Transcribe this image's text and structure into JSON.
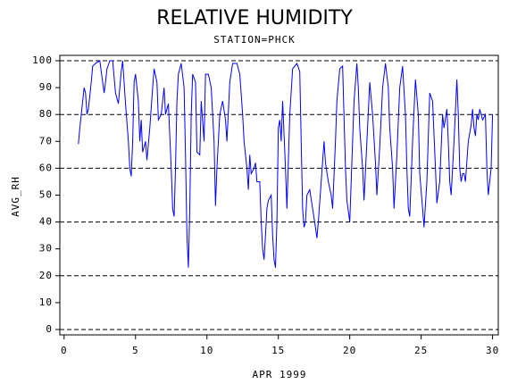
{
  "chart_data": {
    "type": "line",
    "title": "RELATIVE HUMIDITY",
    "subtitle": "STATION=PHCK",
    "xlabel": "APR 1999",
    "ylabel": "AVG_RH",
    "xlim": [
      -0.3,
      30.4
    ],
    "ylim": [
      -2,
      102
    ],
    "xticks": [
      0,
      5,
      10,
      15,
      20,
      25,
      30
    ],
    "yticks": [
      0,
      10,
      20,
      30,
      40,
      50,
      60,
      70,
      80,
      90,
      100
    ],
    "grid_values": [
      0,
      20,
      40,
      60,
      80,
      100
    ],
    "series": [
      {
        "color": "#0000ff",
        "x": [
          1.0,
          1.1,
          1.3,
          1.4,
          1.5,
          1.6,
          1.7,
          1.9,
          2.0,
          2.2,
          2.5,
          2.6,
          2.8,
          2.9,
          3.0,
          3.2,
          3.4,
          3.6,
          3.8,
          4.0,
          4.1,
          4.3,
          4.5,
          4.6,
          4.7,
          4.8,
          4.9,
          5.0,
          5.2,
          5.3,
          5.4,
          5.5,
          5.7,
          5.8,
          6.0,
          6.2,
          6.3,
          6.5,
          6.6,
          6.8,
          7.0,
          7.1,
          7.3,
          7.5,
          7.6,
          7.7,
          7.8,
          7.9,
          8.0,
          8.2,
          8.4,
          8.5,
          8.6,
          8.7,
          8.8,
          8.9,
          9.0,
          9.2,
          9.3,
          9.5,
          9.6,
          9.8,
          9.9,
          10.1,
          10.3,
          10.5,
          10.6,
          10.7,
          10.9,
          11.1,
          11.3,
          11.4,
          11.6,
          11.8,
          12.1,
          12.3,
          12.5,
          12.6,
          12.8,
          12.9,
          13.0,
          13.1,
          13.3,
          13.4,
          13.5,
          13.7,
          13.8,
          13.9,
          14.0,
          14.1,
          14.2,
          14.3,
          14.5,
          14.6,
          14.7,
          14.8,
          14.9,
          15.0,
          15.1,
          15.2,
          15.3,
          15.5,
          15.6,
          15.8,
          16.0,
          16.3,
          16.5,
          16.6,
          16.7,
          16.8,
          16.9,
          17.0,
          17.2,
          17.4,
          17.6,
          17.7,
          17.8,
          18.0,
          18.2,
          18.3,
          18.5,
          18.7,
          18.8,
          19.0,
          19.1,
          19.3,
          19.5,
          19.7,
          19.8,
          20.0,
          20.1,
          20.3,
          20.5,
          20.6,
          20.7,
          20.9,
          21.0,
          21.2,
          21.4,
          21.6,
          21.8,
          21.9,
          22.1,
          22.3,
          22.5,
          22.7,
          22.8,
          23.0,
          23.1,
          23.3,
          23.5,
          23.7,
          23.9,
          24.0,
          24.1,
          24.2,
          24.4,
          24.6,
          24.8,
          24.9,
          25.1,
          25.2,
          25.4,
          25.6,
          25.8,
          26.0,
          26.1,
          26.3,
          26.5,
          26.6,
          26.8,
          26.9,
          27.0,
          27.1,
          27.3,
          27.5,
          27.6,
          27.7,
          27.8,
          27.9,
          28.0,
          28.1,
          28.3,
          28.5,
          28.6,
          28.7,
          28.8,
          28.9,
          29.0,
          29.1,
          29.3,
          29.5,
          29.6,
          29.7,
          29.8,
          29.9,
          30.0
        ],
        "values": [
          69,
          75,
          85,
          90,
          88,
          80,
          82,
          92,
          98,
          99,
          100,
          96,
          88,
          92,
          97,
          100,
          100,
          88,
          84,
          96,
          100,
          84,
          70,
          60,
          57,
          70,
          92,
          95,
          85,
          70,
          78,
          66,
          70,
          63,
          75,
          90,
          97,
          92,
          78,
          80,
          90,
          80,
          84,
          60,
          45,
          42,
          60,
          85,
          95,
          99,
          90,
          65,
          35,
          23,
          45,
          80,
          95,
          92,
          66,
          65,
          85,
          70,
          95,
          95,
          90,
          70,
          46,
          60,
          80,
          85,
          78,
          70,
          92,
          99,
          99,
          95,
          80,
          70,
          60,
          52,
          65,
          58,
          60,
          62,
          55,
          55,
          40,
          30,
          26,
          35,
          45,
          48,
          50,
          35,
          26,
          23,
          40,
          75,
          78,
          70,
          85,
          60,
          45,
          80,
          97,
          99,
          96,
          70,
          45,
          38,
          40,
          50,
          52,
          45,
          38,
          34,
          40,
          55,
          70,
          62,
          55,
          50,
          45,
          70,
          85,
          97,
          98,
          60,
          48,
          40,
          55,
          85,
          99,
          90,
          75,
          60,
          48,
          70,
          92,
          80,
          62,
          50,
          68,
          90,
          99,
          90,
          75,
          60,
          45,
          65,
          90,
          98,
          80,
          60,
          45,
          42,
          70,
          93,
          80,
          58,
          45,
          38,
          55,
          88,
          85,
          60,
          47,
          55,
          80,
          75,
          82,
          70,
          55,
          50,
          70,
          93,
          80,
          60,
          55,
          58,
          58,
          55,
          70,
          76,
          82,
          75,
          72,
          80,
          78,
          82,
          78,
          80,
          60,
          50,
          55,
          60,
          80
        ]
      }
    ]
  }
}
